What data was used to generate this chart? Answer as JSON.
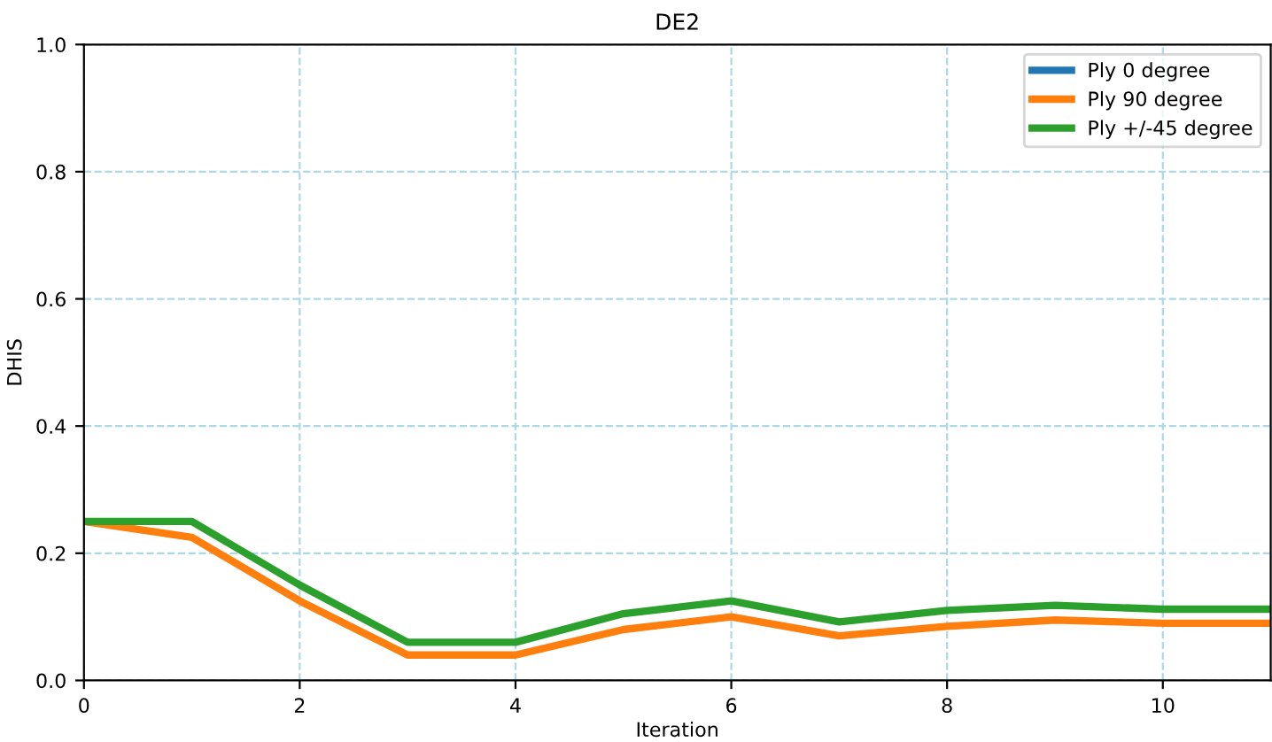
{
  "chart_data": {
    "type": "line",
    "title": "DE2",
    "xlabel": "Iteration",
    "ylabel": "DHIS",
    "x": [
      0,
      1,
      2,
      3,
      4,
      5,
      6,
      7,
      8,
      9,
      10,
      11
    ],
    "series": [
      {
        "name": "Ply 0 degree",
        "color": "#1f77b4",
        "values": [
          null,
          null,
          null,
          null,
          null,
          null,
          null,
          null,
          null,
          null,
          null,
          null
        ]
      },
      {
        "name": "Ply 90 degree",
        "color": "#ff7f0e",
        "values": [
          0.25,
          0.225,
          0.125,
          0.04,
          0.04,
          0.08,
          0.1,
          0.07,
          0.085,
          0.095,
          0.09,
          0.09
        ]
      },
      {
        "name": "Ply +/-45 degree",
        "color": "#2ca02c",
        "values": [
          0.25,
          0.25,
          0.15,
          0.06,
          0.06,
          0.105,
          0.125,
          0.092,
          0.11,
          0.118,
          0.112,
          0.112
        ]
      }
    ],
    "xlim": [
      0,
      11
    ],
    "xticks": [
      0,
      2,
      4,
      6,
      8,
      10
    ],
    "ylim": [
      0,
      1.0
    ],
    "yticks": [
      {
        "value": 0,
        "label": "0.0"
      },
      {
        "value": 0.2,
        "label": "0.2"
      },
      {
        "value": 0.4,
        "label": "0.4"
      },
      {
        "value": 0.6,
        "label": "0.6"
      },
      {
        "value": 0.8,
        "label": "0.8"
      },
      {
        "value": 1.0,
        "label": "1.0"
      }
    ],
    "grid": true,
    "legend": "top right",
    "marker": "none",
    "line_style": "solid"
  }
}
